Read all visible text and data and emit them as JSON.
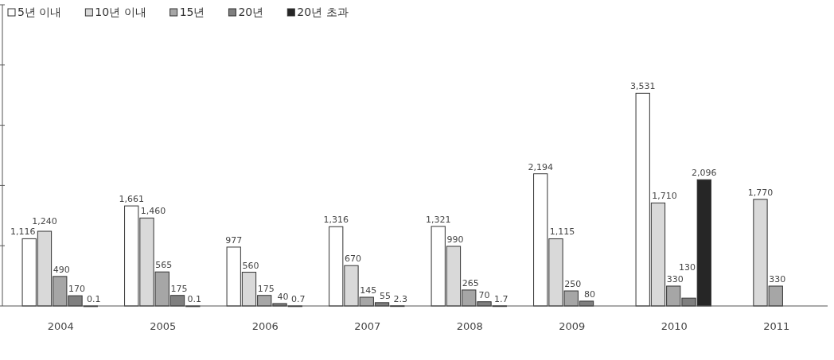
{
  "chart_data": {
    "type": "bar",
    "categories": [
      "2004",
      "2005",
      "2006",
      "2007",
      "2008",
      "2009",
      "2010",
      "2011"
    ],
    "series": [
      {
        "name": "5년 이내",
        "color": "#ffffff",
        "values": [
          1116,
          1661,
          977,
          1316,
          1321,
          2194,
          3531,
          null
        ],
        "value_labels": [
          "1,116",
          "1,661",
          "977",
          "1,316",
          "1,321",
          "2,194",
          "3,531",
          null
        ]
      },
      {
        "name": "10년 이내",
        "color": "#d9d9d9",
        "values": [
          1240,
          1460,
          560,
          670,
          990,
          1115,
          1710,
          1770
        ],
        "value_labels": [
          "1,240",
          "1,460",
          "560",
          "670",
          "990",
          "1,115",
          "1,710",
          "1,770"
        ]
      },
      {
        "name": "15년",
        "color": "#a6a6a6",
        "values": [
          490,
          565,
          175,
          145,
          265,
          250,
          330,
          330
        ],
        "value_labels": [
          "490",
          "565",
          "175",
          "145",
          "265",
          "250",
          "330",
          "330"
        ]
      },
      {
        "name": "20년",
        "color": "#7f7f7f",
        "values": [
          170,
          175,
          40,
          55,
          70,
          80,
          130,
          null
        ],
        "value_labels": [
          "170",
          "175",
          "40",
          "55",
          "70",
          "80",
          "130",
          null
        ]
      },
      {
        "name": "20년 초과",
        "color": "#262626",
        "values": [
          0.1,
          0.1,
          0.7,
          2.3,
          1.7,
          null,
          2096,
          null
        ],
        "value_labels": [
          "0.1",
          "0.1",
          "0.7",
          "2.3",
          "1.7",
          null,
          "2,096",
          null
        ]
      }
    ],
    "ylim": [
      0,
      5000
    ],
    "yticks": [
      {
        "value": 0,
        "label": null
      },
      {
        "value": 1000,
        "label": null
      },
      {
        "value": 2000,
        "label": null
      },
      {
        "value": 3000,
        "label": null
      },
      {
        "value": 4000,
        "label": null
      },
      {
        "value": 5000,
        "label": null
      }
    ],
    "tick_labels": "x",
    "legend": "top left",
    "grid": false
  }
}
